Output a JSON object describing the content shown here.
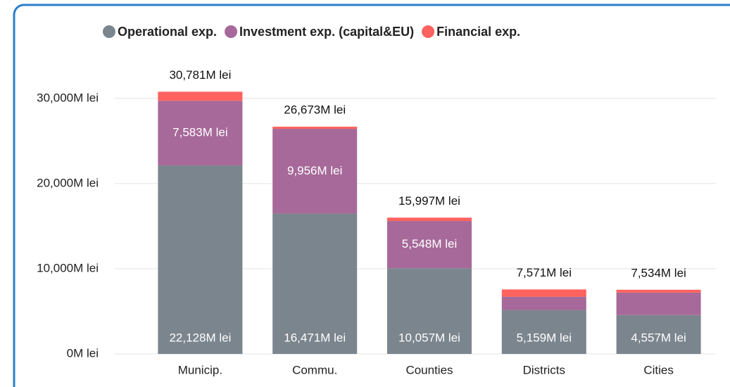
{
  "chart_data": {
    "type": "stacked_bar",
    "categories": [
      "Municip.",
      "Commu.",
      "Counties",
      "Districts",
      "Cities"
    ],
    "series": [
      {
        "name": "Operational exp.",
        "color": "#7b858e",
        "values": [
          22128,
          16471,
          10057,
          5159,
          4557
        ],
        "value_labels": [
          "22,128M lei",
          "16,471M lei",
          "10,057M lei",
          "5,159M lei",
          "4,557M lei"
        ]
      },
      {
        "name": "Investment exp. (capital&EU)",
        "color": "#a66999",
        "values": [
          7583,
          9956,
          5548,
          1560,
          2640
        ],
        "value_labels": [
          "7,583M lei",
          "9,956M lei",
          "5,548M lei",
          null,
          null
        ]
      },
      {
        "name": "Financial exp.",
        "color": "#fd625e",
        "values": [
          1070,
          246,
          392,
          852,
          337
        ]
      }
    ],
    "totals": [
      30781,
      26673,
      15997,
      7571,
      7534
    ],
    "total_labels": [
      "30,781M lei",
      "26,673M lei",
      "15,997M lei",
      "7,571M lei",
      "7,534M lei"
    ],
    "ylim": [
      0,
      33700
    ],
    "yticks": [
      {
        "value": 0,
        "label": "0M lei"
      },
      {
        "value": 10000,
        "label": "10,000M lei"
      },
      {
        "value": 20000,
        "label": "20,000M lei"
      },
      {
        "value": 30000,
        "label": "30,000M lei"
      }
    ],
    "grid": true
  }
}
